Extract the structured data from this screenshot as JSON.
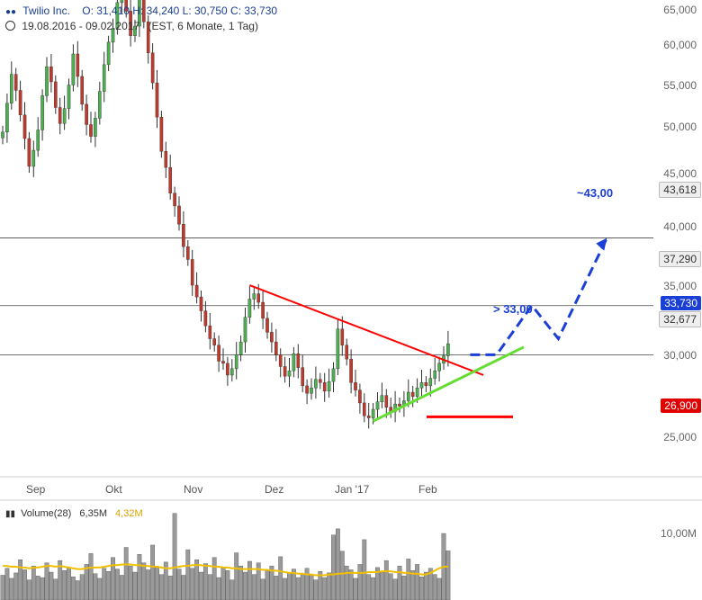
{
  "header": {
    "title": "Twilio Inc.",
    "ohlc": "O: 31,410  H: 34,240  L: 30,750  C: 33,730",
    "range": "19.08.2016 - 09.02.2017",
    "range_meta": "(EST, 6 Monate, 1 Tag)"
  },
  "price_levels": {
    "upper_line": "43,618",
    "mid_line": "37,290",
    "close": "33,730",
    "lower_line": "32,677",
    "stop": "26,900"
  },
  "annotations": {
    "breakout": "> 33,00",
    "target": "~43,00"
  },
  "volume": {
    "label": "Volume(28)",
    "current": "6,35M",
    "ma": "4,32M",
    "tick": "10,00M"
  },
  "colors": {
    "up": "#4caf50",
    "down": "#c0392b",
    "resistance": "#ff0000",
    "support": "#66dd33",
    "projection": "#1a3fd6",
    "volume_ma": "#f0c000",
    "level_line": "#444444"
  },
  "chart_data": {
    "type": "candlestick",
    "title": "Twilio Inc.",
    "ylim": [
      25,
      65
    ],
    "yticks": [
      "65,000",
      "60,000",
      "55,000",
      "50,000",
      "45,000",
      "40,000",
      "35,000",
      "30,000",
      "25,000"
    ],
    "xticks": [
      "Sep",
      "Okt",
      "Nov",
      "Dez",
      "Jan '17",
      "Feb"
    ],
    "close": [
      53.5,
      56.2,
      58.9,
      57.4,
      55.1,
      52.9,
      50.3,
      51.8,
      53.7,
      56.9,
      59.6,
      58.2,
      55.8,
      54.3,
      55.7,
      57.9,
      60.8,
      58.7,
      56.1,
      54.2,
      53.1,
      54.8,
      57.3,
      59.8,
      61.9,
      63.2,
      65.6,
      66.3,
      64.8,
      62.5,
      63.4,
      66.2,
      63.8,
      60.9,
      58.1,
      54.9,
      51.7,
      50.2,
      47.8,
      46.6,
      44.9,
      42.8,
      41.6,
      39.2,
      38.1,
      36.8,
      35.4,
      34.2,
      33.6,
      32.1,
      31.9,
      30.8,
      31.4,
      32.7,
      33.9,
      36.2,
      37.9,
      38.4,
      37.6,
      36.1,
      34.8,
      33.9,
      32.7,
      31.6,
      30.7,
      31.2,
      32.8,
      31.5,
      29.8,
      29.1,
      29.6,
      30.4,
      30.1,
      29.3,
      30.2,
      31.4,
      35.1,
      33.6,
      32.3,
      30.1,
      29.4,
      28.2,
      27.0,
      26.8,
      27.6,
      28.3,
      28.9,
      27.8,
      27.4,
      28.1,
      27.9,
      28.4,
      29.2,
      28.8,
      29.6,
      30.1,
      29.8,
      30.5,
      31.2,
      31.9,
      32.6,
      33.73
    ],
    "support_line": {
      "start": [
        84,
        26.5
      ],
      "end": [
        110,
        31.4
      ]
    },
    "resistance_line": {
      "start": [
        56,
        39.2
      ],
      "end": [
        109,
        30.8
      ]
    },
    "projection_path": [
      [
        106,
        32.7
      ],
      [
        112,
        32.7
      ],
      [
        120,
        37.3
      ],
      [
        126,
        34.2
      ],
      [
        137,
        43.6
      ]
    ],
    "stop_level": 26.9,
    "horizontal_levels": [
      43.618,
      37.29,
      32.677
    ],
    "volume": [
      3.2,
      4.1,
      2.8,
      3.5,
      5.2,
      3.9,
      2.6,
      4.4,
      3.1,
      2.9,
      4.8,
      3.6,
      2.7,
      5.1,
      3.8,
      4.2,
      3.0,
      2.5,
      3.3,
      4.6,
      6.0,
      3.4,
      2.8,
      4.1,
      3.7,
      5.5,
      4.0,
      3.2,
      6.8,
      4.4,
      3.6,
      5.9,
      4.8,
      3.9,
      7.1,
      4.2,
      3.3,
      4.9,
      3.1,
      11.2,
      4.0,
      3.2,
      6.5,
      4.1,
      5.2,
      3.6,
      4.7,
      3.3,
      5.5,
      2.9,
      4.1,
      3.8,
      2.6,
      6.1,
      4.4,
      3.6,
      5.0,
      3.3,
      4.8,
      2.7,
      3.9,
      4.4,
      3.1,
      5.6,
      2.8,
      3.5,
      4.0,
      2.9,
      3.4,
      4.1,
      3.3,
      2.6,
      3.7,
      2.9,
      3.5,
      8.4,
      9.2,
      6.3,
      4.4,
      3.9,
      2.8,
      4.6,
      7.8,
      3.3,
      2.9,
      4.2,
      3.6,
      5.1,
      3.4,
      2.7,
      4.4,
      3.1,
      5.3,
      3.8,
      4.6,
      3.0,
      3.6,
      4.1,
      3.3,
      2.8,
      8.6,
      6.35
    ],
    "volume_ma": [
      4.4,
      4.4,
      4.3,
      4.3,
      4.2,
      4.2,
      4.1,
      4.2,
      4.2,
      4.3,
      4.4,
      4.4,
      4.3,
      4.4,
      4.3,
      4.2,
      4.1,
      4.0,
      4.0,
      4.1,
      4.2,
      4.2,
      4.2,
      4.3,
      4.4,
      4.5,
      4.5,
      4.6,
      4.6,
      4.6,
      4.5,
      4.5,
      4.4,
      4.4,
      4.3,
      4.3,
      4.2,
      4.1,
      4.1,
      4.2,
      4.3,
      4.4,
      4.4,
      4.5,
      4.5,
      4.5,
      4.4,
      4.4,
      4.3,
      4.3,
      4.2,
      4.2,
      4.1,
      4.1,
      4.0,
      4.0,
      4.0,
      4.0,
      4.0,
      3.9,
      3.9,
      3.8,
      3.8,
      3.7,
      3.6,
      3.5,
      3.5,
      3.4,
      3.4,
      3.3,
      3.3,
      3.2,
      3.2,
      3.2,
      3.3,
      3.3,
      3.4,
      3.4,
      3.5,
      3.5,
      3.5,
      3.5,
      3.5,
      3.6,
      3.6,
      3.6,
      3.7,
      3.7,
      3.7,
      3.6,
      3.6,
      3.5,
      3.5,
      3.4,
      3.4,
      3.3,
      3.3,
      3.5,
      3.8,
      4.1,
      4.3,
      4.32
    ]
  }
}
